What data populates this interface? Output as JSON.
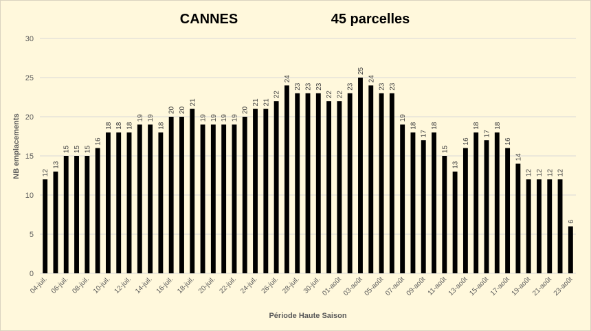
{
  "chart_data": {
    "type": "bar",
    "title": "CANNES",
    "subtitle": "45 parcelles",
    "xlabel": "Période Haute Saison",
    "ylabel": "NB emplacements",
    "ylim": [
      0,
      30
    ],
    "y_ticks": [
      0,
      5,
      10,
      15,
      20,
      25,
      30
    ],
    "grid": true,
    "legend": "none",
    "bar_color": "#000000",
    "categories": [
      "04-juil.",
      "05-juil.",
      "06-juil.",
      "07-juil.",
      "08-juil.",
      "09-juil.",
      "10-juil.",
      "11-juil.",
      "12-juil.",
      "13-juil.",
      "14-juil.",
      "15-juil.",
      "16-juil.",
      "17-juil.",
      "18-juil.",
      "19-juil.",
      "20-juil.",
      "21-juil.",
      "22-juil.",
      "23-juil.",
      "24-juil.",
      "25-juil.",
      "26-juil.",
      "27-juil.",
      "28-juil.",
      "29-juil.",
      "30-juil.",
      "31-juil.",
      "01-août",
      "02-août",
      "03-août",
      "04-août",
      "05-août",
      "06-août",
      "07-août",
      "08-août",
      "09-août",
      "10-août",
      "11-août",
      "12-août",
      "13-août",
      "14-août",
      "15-août",
      "16-août",
      "17-août",
      "18-août",
      "19-août",
      "20-août",
      "21-août",
      "22-août",
      "23-août"
    ],
    "x_tick_labels": [
      "04-juil.",
      "06-juil.",
      "08-juil.",
      "10-juil.",
      "12-juil.",
      "14-juil.",
      "16-juil.",
      "18-juil.",
      "20-juil.",
      "22-juil.",
      "24-juil.",
      "26-juil.",
      "28-juil.",
      "30-juil.",
      "01-août",
      "03-août",
      "05-août",
      "07-août",
      "09-août",
      "11-août",
      "13-août",
      "15-août",
      "17-août",
      "19-août",
      "21-août",
      "23-août"
    ],
    "values": [
      12,
      13,
      15,
      15,
      15,
      16,
      18,
      18,
      18,
      19,
      19,
      18,
      20,
      20,
      21,
      19,
      19,
      19,
      19,
      20,
      21,
      21,
      22,
      24,
      23,
      23,
      23,
      22,
      22,
      23,
      25,
      24,
      23,
      23,
      19,
      18,
      17,
      18,
      15,
      13,
      16,
      18,
      17,
      18,
      16,
      14,
      12,
      12,
      12,
      12,
      6
    ]
  }
}
